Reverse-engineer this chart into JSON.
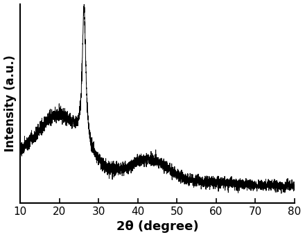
{
  "xlabel": "2θ (degree)",
  "ylabel": "Intensity (a.u.)",
  "xlim": [
    10,
    80
  ],
  "ylim": [
    0,
    1.02
  ],
  "x_ticks": [
    10,
    20,
    30,
    40,
    50,
    60,
    70,
    80
  ],
  "line_color": "#000000",
  "background_color": "#ffffff",
  "line_width": 0.7,
  "xlabel_fontsize": 13,
  "ylabel_fontsize": 12,
  "tick_fontsize": 11
}
